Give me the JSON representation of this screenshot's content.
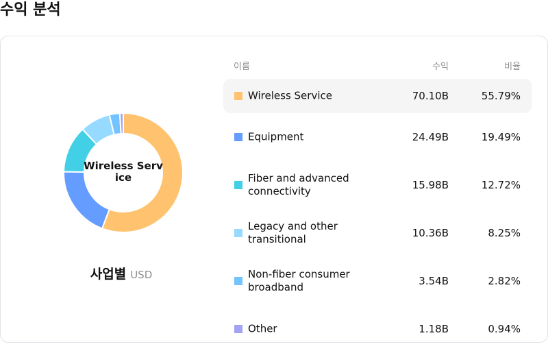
{
  "page": {
    "title": "수익 분석"
  },
  "chart": {
    "center_label": "Wireless Service",
    "caption": "사업별",
    "unit": "USD"
  },
  "table": {
    "headers": {
      "name": "이름",
      "revenue": "수익",
      "ratio": "비율"
    },
    "rows": [
      {
        "name": "Wireless Service",
        "revenue": "70.10B",
        "ratio": "55.79%",
        "color": "#FFC370",
        "highlighted": true
      },
      {
        "name": "Equipment",
        "revenue": "24.49B",
        "ratio": "19.49%",
        "color": "#659CFF"
      },
      {
        "name": "Fiber and advanced connectivity",
        "revenue": "15.98B",
        "ratio": "12.72%",
        "color": "#42D0E6"
      },
      {
        "name": "Legacy and other transitional",
        "revenue": "10.36B",
        "ratio": "8.25%",
        "color": "#97DAFF"
      },
      {
        "name": "Non-fiber consumer broadband",
        "revenue": "3.54B",
        "ratio": "2.82%",
        "color": "#72C3FF"
      },
      {
        "name": "Other",
        "revenue": "1.18B",
        "ratio": "0.94%",
        "color": "#A3A3F5"
      }
    ]
  },
  "chart_data": {
    "type": "pie",
    "title": "수익 분석",
    "subtitle": "사업별 USD",
    "donut": true,
    "center_label": "Wireless Service",
    "categories": [
      "Wireless Service",
      "Equipment",
      "Fiber and advanced connectivity",
      "Legacy and other transitional",
      "Non-fiber consumer broadband",
      "Other"
    ],
    "values": [
      70.1,
      24.49,
      15.98,
      10.36,
      3.54,
      1.18
    ],
    "percentages": [
      55.79,
      19.49,
      12.72,
      8.25,
      2.82,
      0.94
    ],
    "value_unit": "B USD",
    "colors": [
      "#FFC370",
      "#659CFF",
      "#42D0E6",
      "#97DAFF",
      "#72C3FF",
      "#A3A3F5"
    ],
    "legend_position": "right (table)"
  }
}
